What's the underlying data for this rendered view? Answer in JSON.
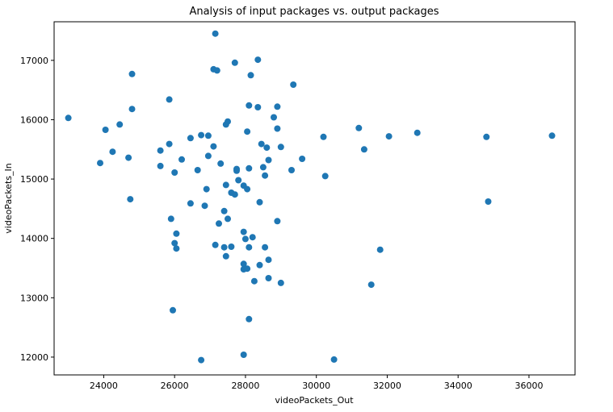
{
  "chart_data": {
    "type": "scatter",
    "title": "Analysis of input packages vs. output packages",
    "xlabel": "videoPackets_Out",
    "ylabel": "videoPackets_In",
    "xlim": [
      22600,
      37300
    ],
    "ylim": [
      11700,
      17650
    ],
    "xticks": [
      24000,
      26000,
      28000,
      30000,
      32000,
      34000,
      36000
    ],
    "yticks": [
      12000,
      13000,
      14000,
      15000,
      16000,
      17000
    ],
    "grid": false,
    "color": "#1f77b4",
    "points": [
      [
        23000,
        16030
      ],
      [
        23900,
        15270
      ],
      [
        24050,
        15830
      ],
      [
        24250,
        15460
      ],
      [
        24450,
        15920
      ],
      [
        24700,
        15360
      ],
      [
        24750,
        14660
      ],
      [
        24800,
        16180
      ],
      [
        24800,
        16770
      ],
      [
        25600,
        15480
      ],
      [
        25600,
        15220
      ],
      [
        25850,
        16340
      ],
      [
        25850,
        15590
      ],
      [
        25900,
        14330
      ],
      [
        25950,
        12790
      ],
      [
        26000,
        15110
      ],
      [
        26000,
        13920
      ],
      [
        26050,
        14080
      ],
      [
        26050,
        13830
      ],
      [
        26200,
        15330
      ],
      [
        26450,
        15690
      ],
      [
        26450,
        14590
      ],
      [
        26650,
        15150
      ],
      [
        26750,
        15740
      ],
      [
        26750,
        11950
      ],
      [
        26850,
        14550
      ],
      [
        26900,
        14830
      ],
      [
        26950,
        15390
      ],
      [
        26950,
        15730
      ],
      [
        27100,
        15550
      ],
      [
        27150,
        13890
      ],
      [
        27150,
        17450
      ],
      [
        27100,
        16850
      ],
      [
        27200,
        16830
      ],
      [
        27250,
        14250
      ],
      [
        27300,
        15260
      ],
      [
        27400,
        14460
      ],
      [
        27400,
        13850
      ],
      [
        27450,
        14900
      ],
      [
        27450,
        15920
      ],
      [
        27500,
        15970
      ],
      [
        27500,
        14330
      ],
      [
        27450,
        13700
      ],
      [
        27600,
        14770
      ],
      [
        27600,
        13860
      ],
      [
        27700,
        14740
      ],
      [
        27700,
        16960
      ],
      [
        27750,
        15170
      ],
      [
        27750,
        15140
      ],
      [
        27800,
        14980
      ],
      [
        27950,
        14890
      ],
      [
        27950,
        14110
      ],
      [
        27950,
        13570
      ],
      [
        27950,
        13480
      ],
      [
        27950,
        12040
      ],
      [
        28000,
        13990
      ],
      [
        28050,
        15800
      ],
      [
        28050,
        14830
      ],
      [
        28050,
        13490
      ],
      [
        28100,
        16240
      ],
      [
        28100,
        15180
      ],
      [
        28100,
        13850
      ],
      [
        28100,
        12640
      ],
      [
        28150,
        16750
      ],
      [
        28200,
        14020
      ],
      [
        28250,
        13280
      ],
      [
        28350,
        17010
      ],
      [
        28350,
        16210
      ],
      [
        28400,
        14610
      ],
      [
        28400,
        13550
      ],
      [
        28450,
        15590
      ],
      [
        28500,
        15200
      ],
      [
        28550,
        15060
      ],
      [
        28550,
        13850
      ],
      [
        28600,
        15530
      ],
      [
        28650,
        15320
      ],
      [
        28650,
        13640
      ],
      [
        28650,
        13330
      ],
      [
        28800,
        16040
      ],
      [
        28900,
        16220
      ],
      [
        28900,
        15850
      ],
      [
        28900,
        14290
      ],
      [
        29000,
        15540
      ],
      [
        29000,
        13250
      ],
      [
        29300,
        15150
      ],
      [
        29350,
        16590
      ],
      [
        29600,
        15340
      ],
      [
        30200,
        15710
      ],
      [
        30250,
        15050
      ],
      [
        30500,
        11960
      ],
      [
        31200,
        15860
      ],
      [
        31350,
        15500
      ],
      [
        31550,
        13220
      ],
      [
        31800,
        13810
      ],
      [
        32050,
        15720
      ],
      [
        32850,
        15780
      ],
      [
        34800,
        15710
      ],
      [
        34850,
        14620
      ],
      [
        36650,
        15730
      ]
    ]
  }
}
